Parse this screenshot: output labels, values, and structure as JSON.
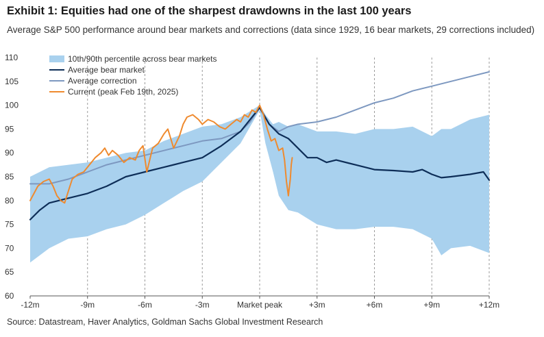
{
  "title": "Exhibit 1: Equities had one of the sharpest drawdowns in the last 100 years",
  "subtitle": "Average S&P 500 performance around bear markets and corrections (data since 1929, 16 bear markets, 29 corrections included)",
  "source": "Source: Datastream, Haver Analytics, Goldman Sachs Global Investment Research",
  "colors": {
    "band": "#a9d1ee",
    "bear": "#0d2d57",
    "correction": "#7d98c0",
    "current": "#ef8a2e",
    "grid": "#9a9a9a"
  },
  "chart_data": {
    "type": "line",
    "xlabel": "",
    "ylabel": "",
    "xlim": [
      -12,
      12
    ],
    "ylim": [
      60,
      110
    ],
    "yticks": [
      60,
      65,
      70,
      75,
      80,
      85,
      90,
      95,
      100,
      105,
      110
    ],
    "xticks": [
      {
        "value": -12,
        "label": "-12m"
      },
      {
        "value": -9,
        "label": "-9m"
      },
      {
        "value": -6,
        "label": "-6m"
      },
      {
        "value": -3,
        "label": "-3m"
      },
      {
        "value": 0,
        "label": "Market peak"
      },
      {
        "value": 3,
        "label": "+3m"
      },
      {
        "value": 6,
        "label": "+6m"
      },
      {
        "value": 9,
        "label": "+9m"
      },
      {
        "value": 12,
        "label": "+12m"
      }
    ],
    "legend": [
      "10th/90th percentile across bear markets",
      "Average bear market",
      "Average correction",
      "Current (peak Feb 19th, 2025)"
    ],
    "band": {
      "name": "10th/90th percentile across bear markets",
      "x": [
        -12,
        -11,
        -10,
        -9,
        -8,
        -7,
        -6,
        -5,
        -4,
        -3,
        -2,
        -1,
        0,
        0.3,
        0.7,
        1,
        1.5,
        2,
        3,
        4,
        5,
        6,
        7,
        8,
        9,
        9.5,
        10,
        11,
        12
      ],
      "upper": [
        85,
        87,
        87.5,
        88,
        89,
        90,
        90.5,
        92.5,
        94,
        95.5,
        96,
        97.5,
        100,
        98,
        96,
        96.5,
        95.5,
        96,
        94.5,
        94.5,
        94,
        95,
        95,
        95.5,
        93.5,
        95,
        95,
        97,
        98
      ],
      "lower": [
        67,
        70,
        72,
        72.5,
        74,
        75,
        77,
        79.5,
        82,
        84,
        88,
        92,
        99,
        92,
        86,
        81,
        78,
        77.5,
        75,
        74,
        74,
        74.5,
        74.5,
        74,
        72,
        68.5,
        70,
        70.5,
        69
      ]
    },
    "series": [
      {
        "name": "Average bear market",
        "x": [
          -12,
          -11.5,
          -11,
          -10,
          -9,
          -8,
          -7,
          -6,
          -5,
          -4,
          -3,
          -2,
          -1,
          -0.5,
          0,
          0.5,
          1,
          1.5,
          2,
          2.5,
          3,
          3.5,
          4,
          5,
          6,
          7,
          8,
          8.5,
          9,
          9.5,
          10,
          11,
          11.7,
          12
        ],
        "values": [
          76,
          78,
          79.5,
          80.5,
          81.5,
          83,
          85,
          86,
          87,
          88,
          89,
          91.5,
          94.5,
          97,
          99.5,
          96,
          94,
          93,
          91,
          89,
          89,
          88,
          88.5,
          87.5,
          86.5,
          86.3,
          86,
          86.5,
          85.5,
          84.8,
          85,
          85.5,
          86,
          84.3
        ]
      },
      {
        "name": "Average correction",
        "x": [
          -12,
          -11,
          -10,
          -9,
          -8,
          -7,
          -6,
          -5,
          -4,
          -3,
          -2,
          -1,
          -0.5,
          0,
          0.5,
          1,
          1.5,
          2,
          3,
          4,
          5,
          6,
          7,
          8,
          9,
          10,
          11,
          12
        ],
        "values": [
          83.5,
          83.5,
          84.5,
          86,
          87.5,
          88.5,
          89.5,
          90.5,
          91.5,
          92.5,
          93,
          94.5,
          96.5,
          99.5,
          96,
          94.5,
          95.5,
          96,
          96.5,
          97.5,
          99,
          100.5,
          101.5,
          103,
          104,
          105,
          106,
          107
        ]
      },
      {
        "name": "Current (peak Feb 19th, 2025)",
        "x": [
          -12,
          -11.8,
          -11.6,
          -11.3,
          -11,
          -10.8,
          -10.6,
          -10.4,
          -10.2,
          -10,
          -9.8,
          -9.5,
          -9.2,
          -8.9,
          -8.6,
          -8.3,
          -8.1,
          -7.9,
          -7.7,
          -7.4,
          -7.1,
          -6.8,
          -6.5,
          -6.3,
          -6.1,
          -5.9,
          -5.6,
          -5.3,
          -5,
          -4.8,
          -4.5,
          -4.2,
          -4,
          -3.8,
          -3.5,
          -3.2,
          -3,
          -2.7,
          -2.4,
          -2.1,
          -1.8,
          -1.5,
          -1.2,
          -1,
          -0.8,
          -0.6,
          -0.4,
          -0.2,
          0,
          0.2,
          0.4,
          0.6,
          0.8,
          1,
          1.2,
          1.3,
          1.4,
          1.5,
          1.6,
          1.65,
          1.7
        ],
        "values": [
          80,
          81.5,
          83,
          84,
          84.5,
          83,
          81,
          80,
          79.5,
          82,
          84.5,
          85.5,
          86,
          87.5,
          89,
          90,
          91,
          89.5,
          90.5,
          89.5,
          88,
          89,
          88.5,
          90.5,
          91.5,
          86,
          91,
          92,
          94,
          95,
          91,
          93.5,
          96,
          97.5,
          98,
          97,
          96,
          97,
          96.5,
          95.5,
          95,
          96,
          97,
          96.5,
          98,
          97.5,
          99,
          98.5,
          100,
          98,
          95,
          92.5,
          93,
          90.5,
          91,
          88.5,
          84,
          81,
          84.5,
          87.5,
          89
        ]
      }
    ]
  }
}
